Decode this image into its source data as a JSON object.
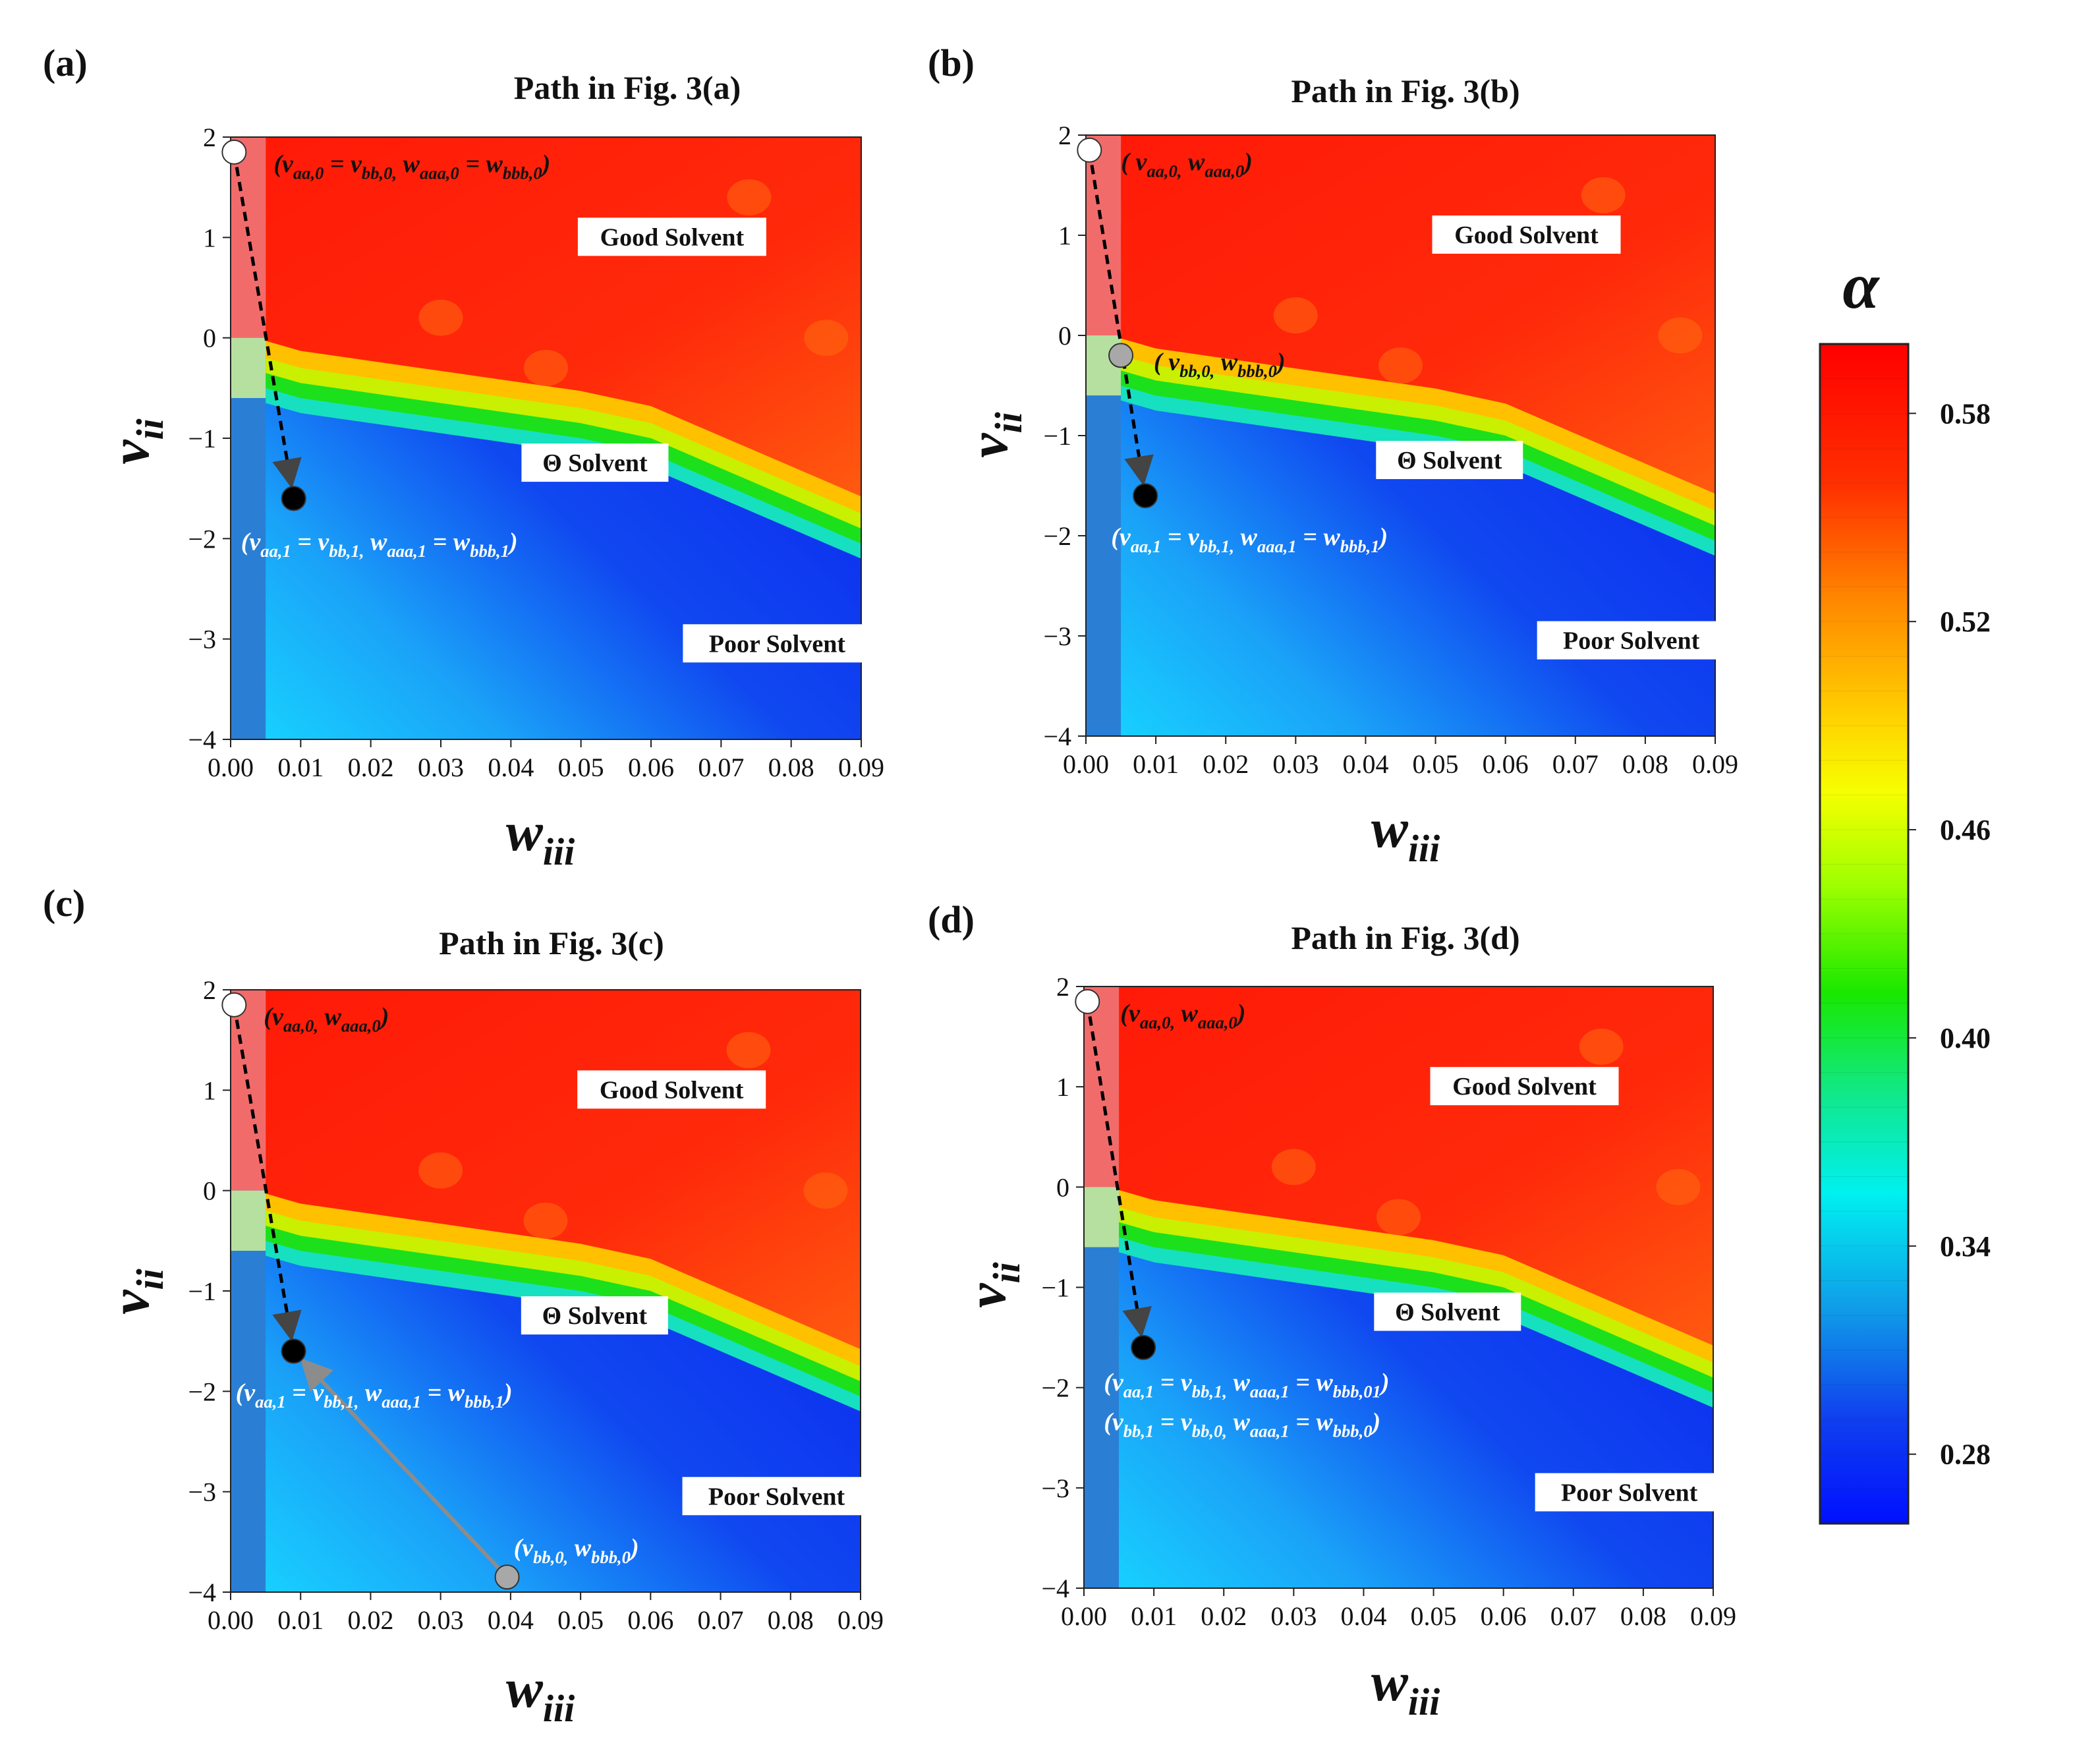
{
  "chart_data": [
    {
      "type": "heatmap",
      "panel_label": "(a)",
      "title": "Path in Fig. 3(a)",
      "xlabel": "w",
      "xlabel_sub": "iii",
      "ylabel": "v",
      "ylabel_sub": "ii",
      "xlim": [
        0.0,
        0.09
      ],
      "ylim": [
        -4,
        2
      ],
      "xticks": [
        "0.00",
        "0.01",
        "0.02",
        "0.03",
        "0.04",
        "0.05",
        "0.06",
        "0.07",
        "0.08",
        "0.09"
      ],
      "yticks": [
        "2",
        "1",
        "0",
        "−1",
        "−2",
        "−3",
        "−4"
      ],
      "regions": [
        "Good Solvent",
        "Θ Solvent",
        "Poor Solvent"
      ],
      "points": [
        {
          "x": 0.0005,
          "y": 1.85,
          "fill": "#ffffff",
          "label": "(v_aa,0 = v_bb,0, w_aaa,0 = w_bbb,0)"
        },
        {
          "x": 0.009,
          "y": -1.6,
          "fill": "#000000",
          "label": "(v_aa,1 = v_bb,1, w_aaa,1 = w_bbb,1)"
        }
      ],
      "paths": [
        {
          "from": 0,
          "to": 1,
          "style": "dashed",
          "color": "#000000"
        }
      ]
    },
    {
      "type": "heatmap",
      "panel_label": "(b)",
      "title": "Path in Fig. 3(b)",
      "xlabel": "w",
      "xlabel_sub": "iii",
      "ylabel": "v",
      "ylabel_sub": "ii",
      "xlim": [
        0.0,
        0.09
      ],
      "ylim": [
        -4,
        2
      ],
      "xticks": [
        "0.00",
        "0.01",
        "0.02",
        "0.03",
        "0.04",
        "0.05",
        "0.06",
        "0.07",
        "0.08",
        "0.09"
      ],
      "yticks": [
        "2",
        "1",
        "0",
        "−1",
        "−2",
        "−3",
        "−4"
      ],
      "regions": [
        "Good Solvent",
        "Θ Solvent",
        "Poor Solvent"
      ],
      "points": [
        {
          "x": 0.0005,
          "y": 1.85,
          "fill": "#ffffff",
          "label": "( v_aa,0, w_aaa,0)"
        },
        {
          "x": 0.005,
          "y": -0.2,
          "fill": "#a8a8a8",
          "label": "( v_bb,0, w_bbb,0)"
        },
        {
          "x": 0.0085,
          "y": -1.6,
          "fill": "#000000",
          "label": "(v_aa,1 = v_bb,1, w_aaa,1 = w_bbb,1)"
        }
      ],
      "paths": [
        {
          "from": 0,
          "to": 2,
          "style": "dashed",
          "color": "#000000"
        }
      ]
    },
    {
      "type": "heatmap",
      "panel_label": "(c)",
      "title": "Path in Fig. 3(c)",
      "xlabel": "w",
      "xlabel_sub": "iii",
      "ylabel": "v",
      "ylabel_sub": "ii",
      "xlim": [
        0.0,
        0.09
      ],
      "ylim": [
        -4,
        2
      ],
      "xticks": [
        "0.00",
        "0.01",
        "0.02",
        "0.03",
        "0.04",
        "0.05",
        "0.06",
        "0.07",
        "0.08",
        "0.09"
      ],
      "yticks": [
        "2",
        "1",
        "0",
        "−1",
        "−2",
        "−3",
        "−4"
      ],
      "regions": [
        "Good Solvent",
        "Θ Solvent",
        "Poor Solvent"
      ],
      "points": [
        {
          "x": 0.0005,
          "y": 1.85,
          "fill": "#ffffff",
          "label": "(v_aa,0, w_aaa,0)"
        },
        {
          "x": 0.009,
          "y": -1.6,
          "fill": "#000000",
          "label": "(v_aa,1 = v_bb,1, w_aaa,1 = w_bbb,1)"
        },
        {
          "x": 0.0395,
          "y": -3.85,
          "fill": "#a8a8a8",
          "label": "(v_bb,0, w_bbb,0)"
        }
      ],
      "paths": [
        {
          "from": 0,
          "to": 1,
          "style": "dashed",
          "color": "#000000"
        },
        {
          "from": 2,
          "to": 1,
          "style": "solid",
          "color": "#8c8c8c"
        }
      ]
    },
    {
      "type": "heatmap",
      "panel_label": "(d)",
      "title": "Path in Fig. 3(d)",
      "xlabel": "w",
      "xlabel_sub": "iii",
      "ylabel": "v",
      "ylabel_sub": "ii",
      "xlim": [
        0.0,
        0.09
      ],
      "ylim": [
        -4,
        2
      ],
      "xticks": [
        "0.00",
        "0.01",
        "0.02",
        "0.03",
        "0.04",
        "0.05",
        "0.06",
        "0.07",
        "0.08",
        "0.09"
      ],
      "yticks": [
        "2",
        "1",
        "0",
        "−1",
        "−2",
        "−3",
        "−4"
      ],
      "regions": [
        "Good Solvent",
        "Θ Solvent",
        "Poor Solvent"
      ],
      "points": [
        {
          "x": 0.0005,
          "y": 1.85,
          "fill": "#ffffff",
          "label": "(v_aa,0, w_aaa,0)"
        },
        {
          "x": 0.0085,
          "y": -1.6,
          "fill": "#000000",
          "label": "(v_aa,1 = v_bb,1, w_aaa,1 = w_bbb,01)"
        }
      ],
      "extra_labels": [
        "(v_bb,1 = v_bb,0, w_aaa,1 = w_bbb,0)"
      ],
      "paths": [
        {
          "from": 0,
          "to": 1,
          "style": "dashed",
          "color": "#000000"
        }
      ]
    }
  ],
  "colorbar": {
    "label": "α",
    "min": 0.26,
    "max": 0.6,
    "ticks": [
      "0.28",
      "0.34",
      "0.40",
      "0.46",
      "0.52",
      "0.58"
    ],
    "tick_values": [
      0.28,
      0.34,
      0.4,
      0.46,
      0.52,
      0.58
    ]
  },
  "colors": {
    "good": "#ff1a0a",
    "good_strip": "#f26b6b",
    "theta_strip": "#b6e0a0",
    "poor": "#0d1ef2",
    "poor_strip": "#2a7fd4"
  }
}
